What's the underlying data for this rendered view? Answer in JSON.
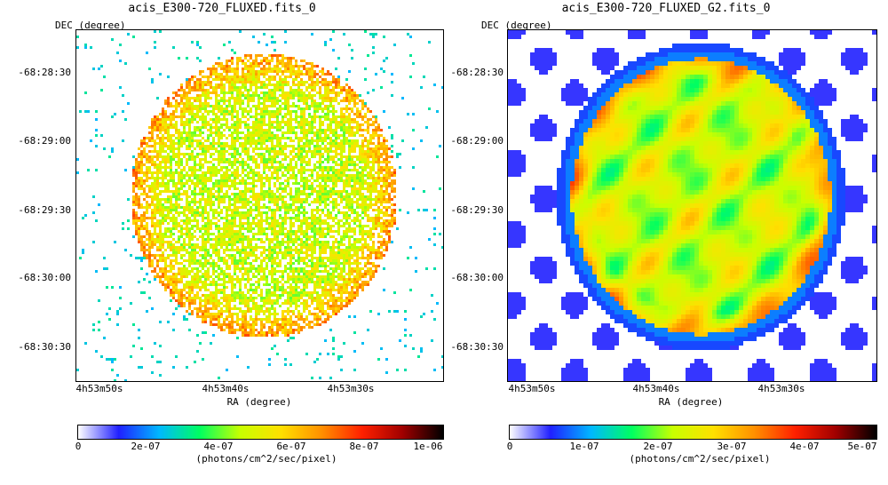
{
  "panels": [
    {
      "title": "acis_E300-720_FLUXED.fits_0",
      "ylabel": "DEC (degree)",
      "xlabel": "RA (degree)",
      "yticks": [
        "-68:28:30",
        "-68:29:00",
        "-68:29:30",
        "-68:30:00",
        "-68:30:30"
      ],
      "xticks": [
        "4h53m50s",
        "4h53m40s",
        "4h53m30s"
      ],
      "colorbar_ticks": [
        "0",
        "2e-07",
        "4e-07",
        "6e-07",
        "8e-07",
        "1e-06"
      ],
      "colorbar_unit": "(photons/cm^2/sec/pixel)",
      "style": "scatter-noise"
    },
    {
      "title": "acis_E300-720_FLUXED_G2.fits_0",
      "ylabel": "DEC (degree)",
      "xlabel": "RA (degree)",
      "yticks": [
        "-68:28:30",
        "-68:29:00",
        "-68:29:30",
        "-68:30:00",
        "-68:30:30"
      ],
      "xticks": [
        "4h53m50s",
        "4h53m40s",
        "4h53m30s"
      ],
      "colorbar_ticks": [
        "0",
        "1e-07",
        "2e-07",
        "3e-07",
        "4e-07",
        "5e-07"
      ],
      "colorbar_unit": "(photons/cm^2/sec/pixel)",
      "style": "smoothed"
    }
  ],
  "colormap": [
    "#ffffff",
    "#2020ff",
    "#00b8ff",
    "#00ff60",
    "#c8ff00",
    "#ffe000",
    "#ff9000",
    "#ff2000",
    "#a00000",
    "#000000"
  ]
}
